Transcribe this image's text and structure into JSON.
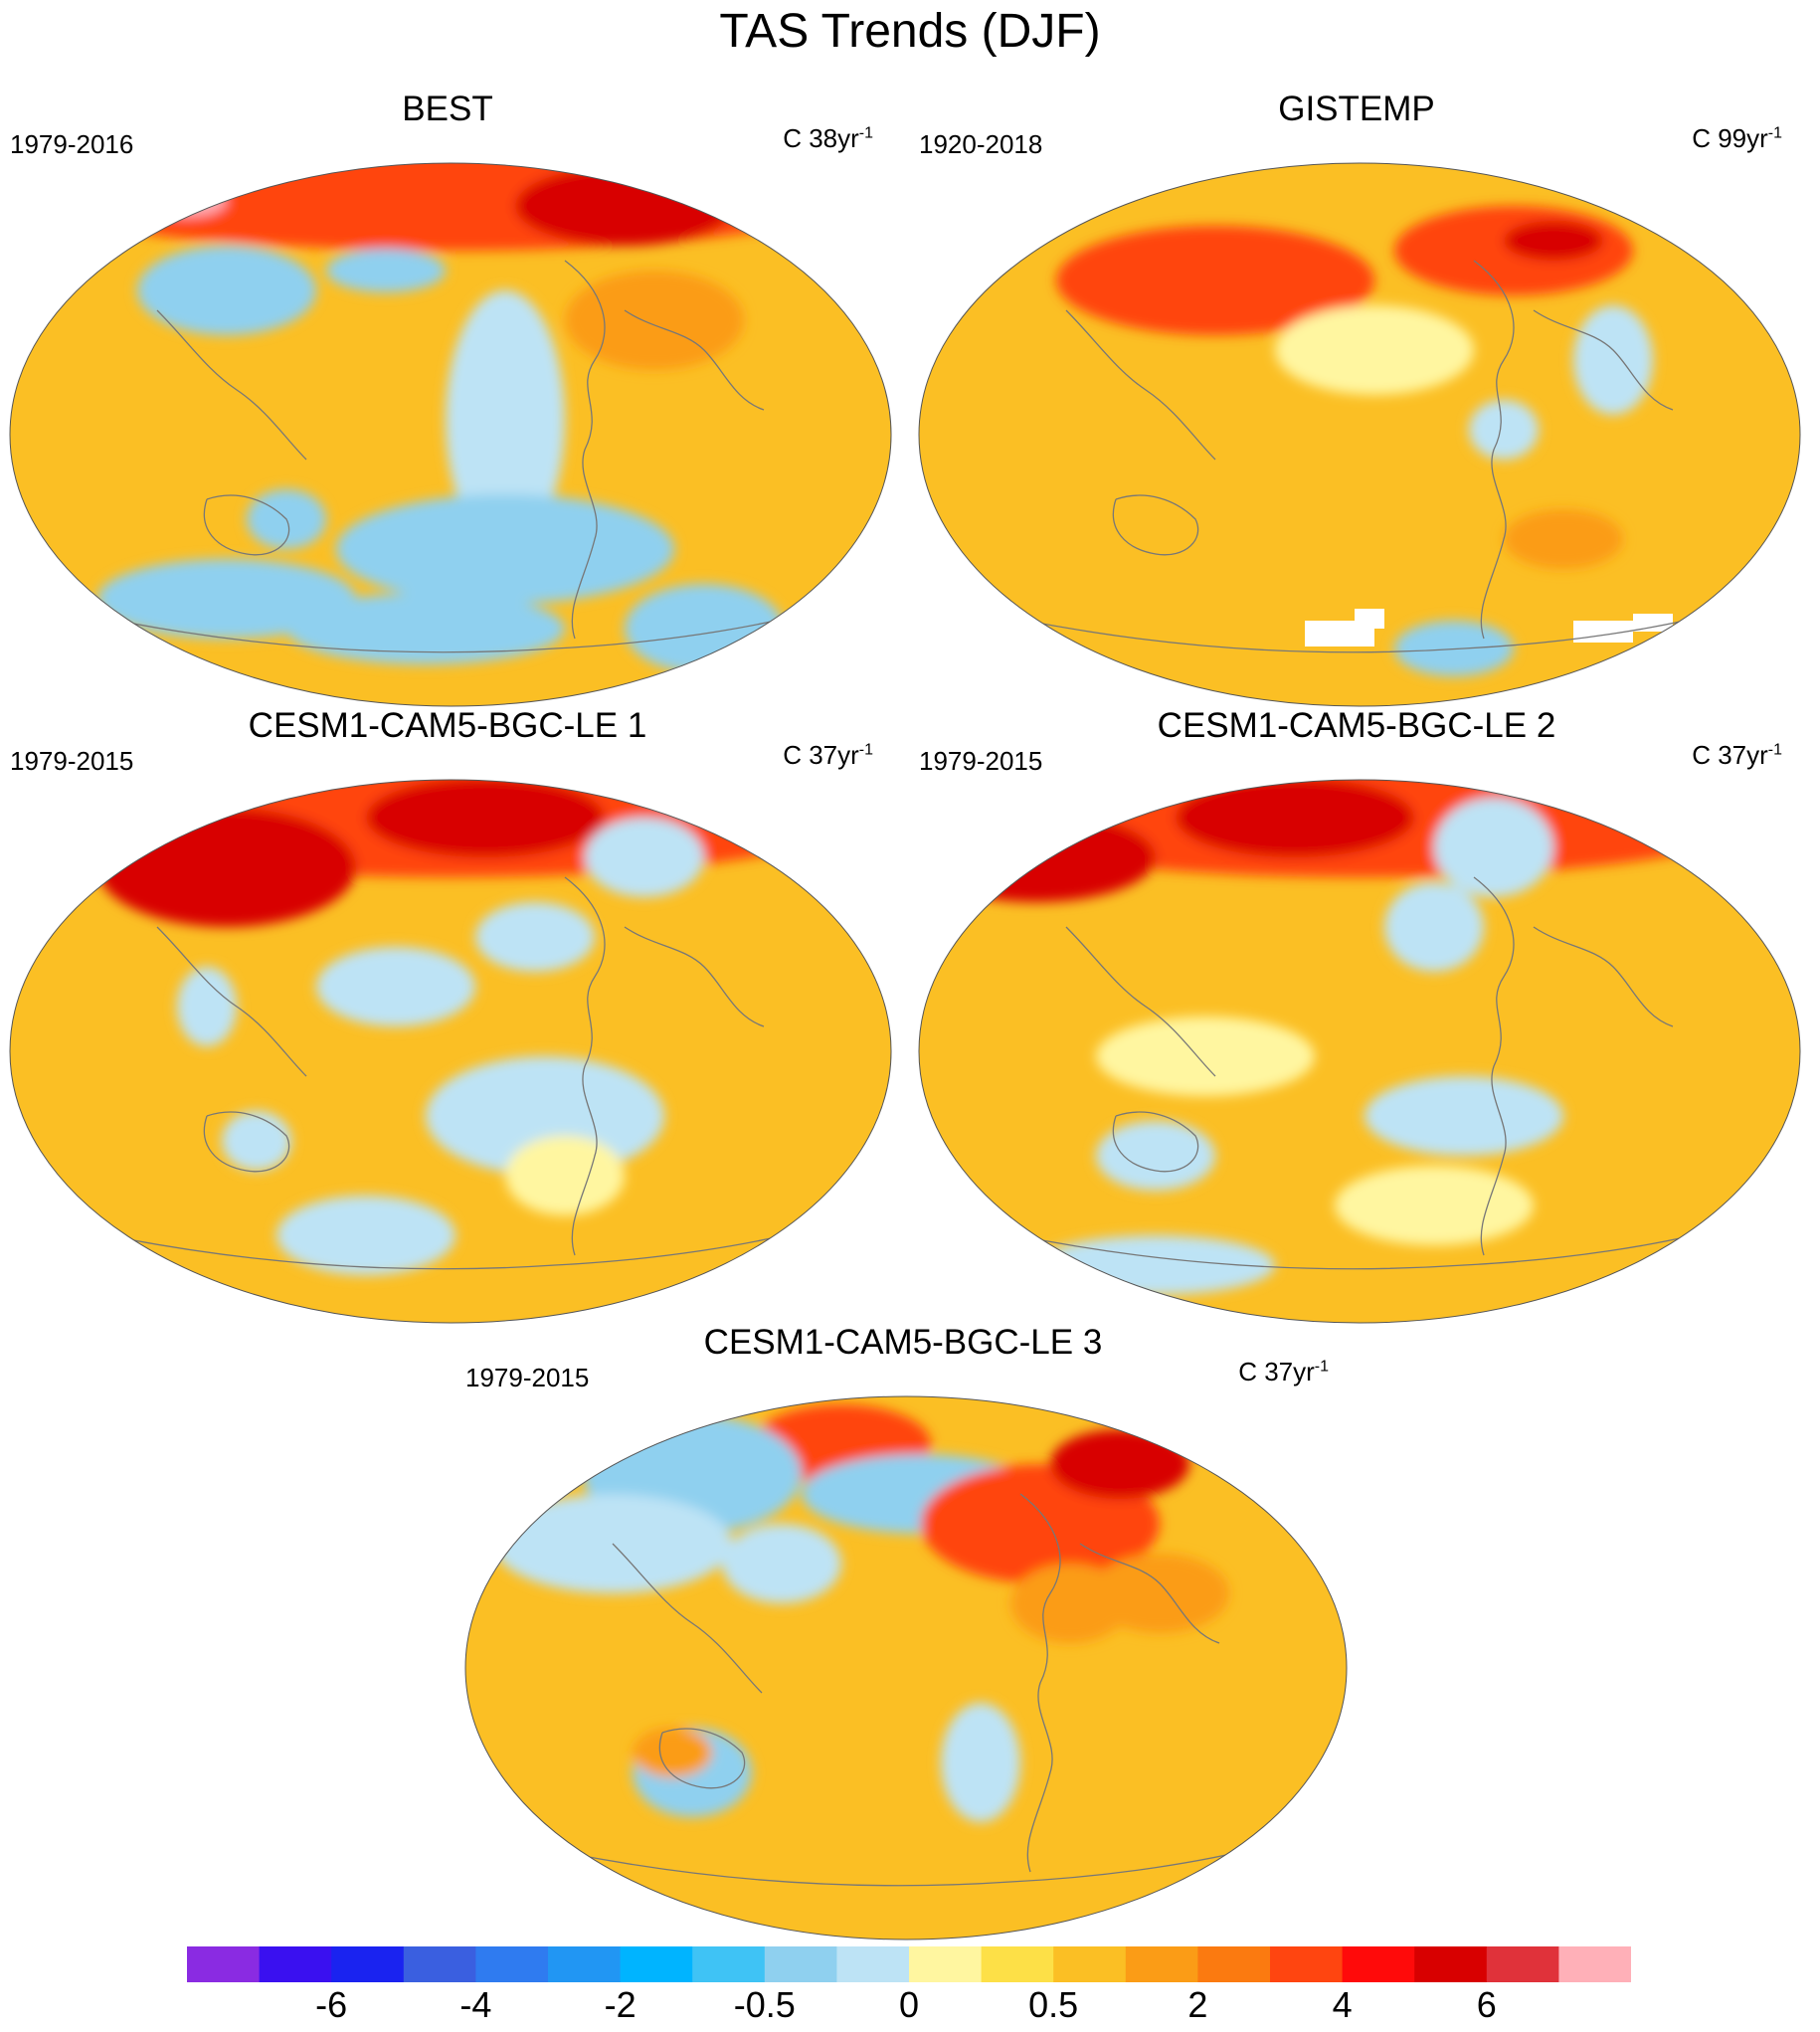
{
  "title": "TAS Trends (DJF)",
  "panels": [
    {
      "title": "BEST",
      "period": "1979-2016",
      "units_base": "C 38yr",
      "units_exp": "-1",
      "has_missing": false
    },
    {
      "title": "GISTEMP",
      "period": "1920-2018",
      "units_base": "C 99yr",
      "units_exp": "-1",
      "has_missing": true
    },
    {
      "title": "CESM1-CAM5-BGC-LE 1",
      "period": "1979-2015",
      "units_base": "C 37yr",
      "units_exp": "-1",
      "has_missing": false
    },
    {
      "title": "CESM1-CAM5-BGC-LE 2",
      "period": "1979-2015",
      "units_base": "C 37yr",
      "units_exp": "-1",
      "has_missing": false
    },
    {
      "title": "CESM1-CAM5-BGC-LE 3",
      "period": "1979-2015",
      "units_base": "C 37yr",
      "units_exp": "-1",
      "has_missing": false
    }
  ],
  "colorbar": {
    "colors": [
      "#8a2be2",
      "#3a10f0",
      "#1a23f0",
      "#3a5fe0",
      "#2f7bf0",
      "#2196f3",
      "#00b4ff",
      "#3fc3f5",
      "#8fd0ef",
      "#bde3f5",
      "#fff6a0",
      "#fde047",
      "#fbbf24",
      "#fb9c16",
      "#fb7a10",
      "#ff4510",
      "#ff0a0a",
      "#d80000",
      "#e0323a",
      "#ffb0b8"
    ],
    "tick_labels": [
      "-6",
      "-4",
      "-2",
      "-0.5",
      "0",
      "0.5",
      "2",
      "4",
      "6"
    ]
  },
  "palette": {
    "cold": "#8fd0ef",
    "cool": "#bde3f5",
    "neutral": "#fff6a0",
    "warm": "#fbbf24",
    "warmer": "#fb9c16",
    "hot": "#ff4510",
    "hottest": "#d80000",
    "extreme": "#ffb0b8",
    "coastline": "#777777",
    "missing": "#ffffff"
  }
}
